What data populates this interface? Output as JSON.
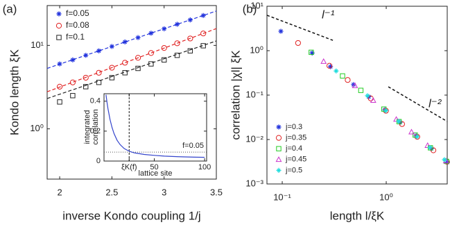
{
  "chart_data": [
    {
      "type": "scatter",
      "panel_label": "(a)",
      "x_label": "inverse Kondo coupling  1/j",
      "y_label": "Kondo length  ξK",
      "xlim": [
        1.88,
        3.5
      ],
      "xticks": [
        2,
        2.5,
        3,
        3.5
      ],
      "log_y": true,
      "ylim": [
        0.25,
        30
      ],
      "yticks": [
        {
          "value": 1,
          "label": "10⁰"
        },
        {
          "value": 10,
          "label": "10¹"
        }
      ],
      "legend": "upper left",
      "series": [
        {
          "name": "f=0.05",
          "color": "#2233dd",
          "marker": "asterisk",
          "x": [
            2,
            2.125,
            2.25,
            2.375,
            2.5,
            2.625,
            2.75,
            2.875,
            3,
            3.125,
            3.25,
            3.375
          ],
          "values": [
            6.0,
            6.7,
            7.6,
            8.6,
            9.7,
            11,
            12.4,
            14,
            15.8,
            17.9,
            20.2,
            22.8
          ]
        },
        {
          "name": "f=0.08",
          "color": "#e02020",
          "marker": "circle",
          "x": [
            2,
            2.125,
            2.25,
            2.375,
            2.5,
            2.625,
            2.75,
            2.875,
            3,
            3.125,
            3.25,
            3.375
          ],
          "values": [
            3.2,
            3.6,
            4.1,
            4.7,
            5.4,
            6.2,
            7.1,
            8.1,
            9.3,
            10.6,
            12.1,
            13.9
          ]
        },
        {
          "name": "f=0.1",
          "color": "#222222",
          "marker": "square",
          "x": [
            2,
            2.125,
            2.25,
            2.375,
            2.5,
            2.625,
            2.75,
            2.875,
            3,
            3.125,
            3.25,
            3.375
          ],
          "values": [
            2.1,
            2.5,
            3.2,
            3.6,
            4.1,
            4.7,
            5.3,
            6.0,
            6.7,
            7.6,
            8.6,
            9.9
          ]
        }
      ],
      "fit_lines": [
        {
          "color": "#2233dd",
          "x": [
            1.88,
            3.5
          ],
          "values": [
            5.3,
            25.8
          ]
        },
        {
          "color": "#e02020",
          "x": [
            1.88,
            3.5
          ],
          "values": [
            2.78,
            15.9
          ]
        },
        {
          "color": "#222222",
          "x": [
            1.88,
            3.5
          ],
          "values": [
            2.31,
            11.3
          ]
        }
      ]
    },
    {
      "type": "line",
      "x_label": "lattice site",
      "y_label": [
        "integrated",
        "correlation"
      ],
      "annotation": "f=0.05",
      "xlim": [
        0,
        102
      ],
      "xticks": [
        {
          "value": 25,
          "label": "ξK(f)"
        },
        50,
        100
      ],
      "ylim": [
        0,
        0.45
      ],
      "yticks": [
        0,
        0.2,
        0.4
      ],
      "marker_x": 25,
      "threshold": 0.06,
      "series": [
        {
          "color": "#3344cc",
          "x": [
            2,
            3,
            4,
            6,
            8,
            10,
            13,
            16,
            20,
            25,
            30,
            40,
            50,
            60,
            70,
            80,
            90,
            100
          ],
          "values": [
            0.443,
            0.391,
            0.348,
            0.277,
            0.224,
            0.183,
            0.139,
            0.11,
            0.084,
            0.0655,
            0.055,
            0.044,
            0.038,
            0.033,
            0.03,
            0.028,
            0.026,
            0.025
          ]
        }
      ]
    },
    {
      "type": "scatter",
      "panel_label": "(b)",
      "x_label": "length  l/ξK",
      "y_label": "correlation  |χl|  ξK",
      "log_x": true,
      "log_y": true,
      "xlim": [
        0.0713,
        3.86
      ],
      "xticks": [
        {
          "value": 0.1,
          "label": "10⁻¹"
        },
        {
          "value": 1,
          "label": "10⁰"
        }
      ],
      "ylim": [
        0.001,
        10
      ],
      "yticks": [
        {
          "value": 0.001,
          "label": "10⁻³"
        },
        {
          "value": 0.01,
          "label": "10⁻²"
        },
        {
          "value": 0.1,
          "label": "10⁻¹"
        },
        {
          "value": 1,
          "label": "10⁰"
        },
        {
          "value": 10,
          "label": "10¹"
        }
      ],
      "legend": "lower left",
      "series": [
        {
          "name": "j=0.3",
          "color": "#2233dd",
          "marker": "asterisk",
          "x": [
            0.097,
            0.194,
            0.291,
            0.485,
            0.679,
            0.97,
            1.358,
            1.94,
            2.716,
            3.88
          ],
          "values": [
            2.73,
            0.886,
            0.437,
            0.1726,
            0.0918,
            0.0465,
            0.0243,
            0.0121,
            0.00624,
            0.00309
          ]
        },
        {
          "name": "j=0.35",
          "color": "#e02020",
          "marker": "circle",
          "x": [
            0.142,
            0.284,
            0.426,
            0.71,
            0.994,
            1.42,
            1.988,
            2.84,
            3.834
          ],
          "values": [
            1.49,
            0.457,
            0.219,
            0.0844,
            0.0444,
            0.0223,
            0.01153,
            0.00572,
            0.00316
          ]
        },
        {
          "name": "j=0.4",
          "color": "#22cc22",
          "marker": "square",
          "x": [
            0.19,
            0.38,
            0.57,
            0.95,
            1.33,
            1.9,
            2.66,
            3.8
          ],
          "values": [
            0.919,
            0.27,
            0.1277,
            0.0484,
            0.0253,
            0.0126,
            0.00651,
            0.00322
          ]
        },
        {
          "name": "j=0.45",
          "color": "#cc33cc",
          "marker": "triangle",
          "x": [
            0.25,
            0.5,
            0.75,
            1.25,
            1.75,
            2.5,
            3.75
          ],
          "values": [
            0.572,
            0.163,
            0.0761,
            0.0285,
            0.0148,
            0.00735,
            0.0033
          ]
        },
        {
          "name": "j=0.5",
          "color": "#22dddd",
          "marker": "star",
          "x": [
            0.33,
            0.66,
            0.99,
            1.32,
            1.98,
            2.64,
            3.63
          ],
          "values": [
            0.349,
            0.0969,
            0.0447,
            0.0257,
            0.01163,
            0.0066,
            0.00352
          ]
        }
      ],
      "reference_lines": [
        {
          "label": "l⁻¹",
          "color": "#111111",
          "x": [
            0.0713,
            0.307
          ],
          "values": [
            6.27,
            1.71
          ]
        },
        {
          "label": "l⁻²",
          "color": "#111111",
          "x": [
            1.047,
            3.86
          ],
          "values": [
            0.154,
            0.0255
          ]
        }
      ]
    }
  ]
}
